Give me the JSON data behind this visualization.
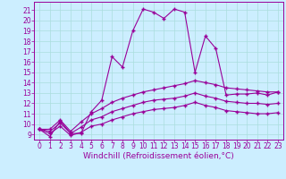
{
  "xlabel": "Windchill (Refroidissement éolien,°C)",
  "bg_color": "#cceeff",
  "line_color": "#990099",
  "xlim": [
    -0.5,
    23.5
  ],
  "ylim": [
    8.5,
    21.8
  ],
  "xticks": [
    0,
    1,
    2,
    3,
    4,
    5,
    6,
    7,
    8,
    9,
    10,
    11,
    12,
    13,
    14,
    15,
    16,
    17,
    18,
    19,
    20,
    21,
    22,
    23
  ],
  "yticks": [
    9,
    10,
    11,
    12,
    13,
    14,
    15,
    16,
    17,
    18,
    19,
    20,
    21
  ],
  "series1_x": [
    0,
    1,
    2,
    3,
    4,
    5,
    6,
    7,
    8,
    9,
    10,
    11,
    12,
    13,
    14,
    15,
    16,
    17,
    18,
    19,
    20,
    21,
    22,
    23
  ],
  "series1_y": [
    9.5,
    8.8,
    10.3,
    9.1,
    9.1,
    11.2,
    12.3,
    16.5,
    15.5,
    19.0,
    21.1,
    20.8,
    20.2,
    21.1,
    20.8,
    15.0,
    18.5,
    17.3,
    12.8,
    12.9,
    12.9,
    13.0,
    12.8,
    13.1
  ],
  "series2_x": [
    0,
    1,
    2,
    3,
    4,
    5,
    6,
    7,
    8,
    9,
    10,
    11,
    12,
    13,
    14,
    15,
    16,
    17,
    18,
    19,
    20,
    21,
    22,
    23
  ],
  "series2_y": [
    9.5,
    9.5,
    10.4,
    9.3,
    10.2,
    11.0,
    11.5,
    12.1,
    12.5,
    12.8,
    13.1,
    13.3,
    13.5,
    13.7,
    13.9,
    14.2,
    14.0,
    13.8,
    13.5,
    13.4,
    13.3,
    13.2,
    13.1,
    13.1
  ],
  "series3_x": [
    0,
    1,
    2,
    3,
    4,
    5,
    6,
    7,
    8,
    9,
    10,
    11,
    12,
    13,
    14,
    15,
    16,
    17,
    18,
    19,
    20,
    21,
    22,
    23
  ],
  "series3_y": [
    9.5,
    9.3,
    10.1,
    9.1,
    9.7,
    10.4,
    10.7,
    11.2,
    11.5,
    11.8,
    12.1,
    12.3,
    12.4,
    12.5,
    12.7,
    13.0,
    12.7,
    12.5,
    12.2,
    12.1,
    12.0,
    12.0,
    11.9,
    12.0
  ],
  "series4_x": [
    0,
    1,
    2,
    3,
    4,
    5,
    6,
    7,
    8,
    9,
    10,
    11,
    12,
    13,
    14,
    15,
    16,
    17,
    18,
    19,
    20,
    21,
    22,
    23
  ],
  "series4_y": [
    9.5,
    9.1,
    9.8,
    8.9,
    9.2,
    9.8,
    10.0,
    10.4,
    10.7,
    11.0,
    11.2,
    11.4,
    11.5,
    11.6,
    11.8,
    12.1,
    11.8,
    11.6,
    11.3,
    11.2,
    11.1,
    11.0,
    11.0,
    11.1
  ],
  "grid_color": "#aadddd",
  "tick_fontsize": 5.5,
  "label_fontsize": 6.5,
  "marker": "+"
}
